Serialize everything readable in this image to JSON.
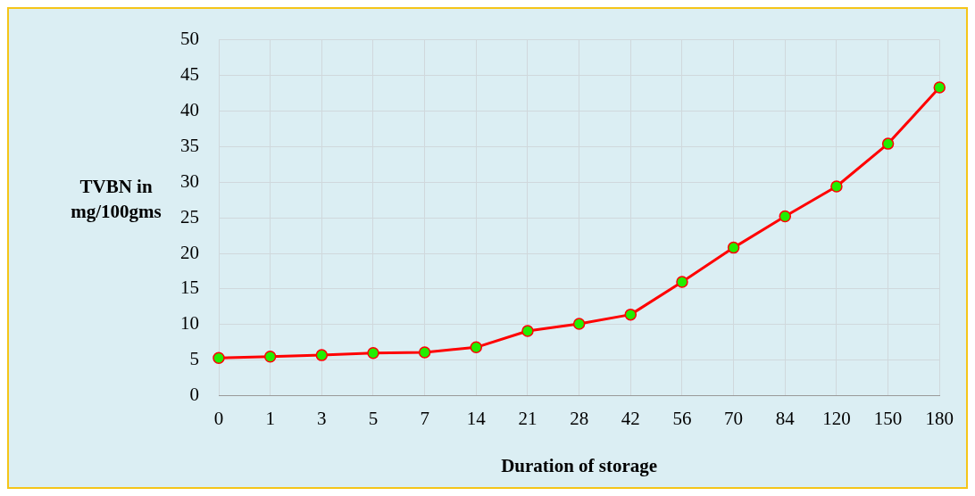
{
  "chart_data": {
    "type": "line",
    "xlabel": "Duration of storage",
    "ylabel": "TVBN in mg/100gms",
    "categories": [
      "0",
      "1",
      "3",
      "5",
      "7",
      "14",
      "21",
      "28",
      "42",
      "56",
      "70",
      "84",
      "120",
      "150",
      "180"
    ],
    "series": [
      {
        "color": "#ff0000",
        "values": [
          5.3,
          5.5,
          5.7,
          6.0,
          6.1,
          6.8,
          9.1,
          10.1,
          11.4,
          16.0,
          20.8,
          25.2,
          29.4,
          35.4,
          43.3
        ]
      }
    ],
    "ylim": [
      0,
      50
    ],
    "yticks": [
      0,
      5,
      10,
      15,
      20,
      25,
      30,
      35,
      40,
      45,
      50
    ],
    "grid": true,
    "legend": false,
    "marker": "circle",
    "line_style": "solid"
  }
}
